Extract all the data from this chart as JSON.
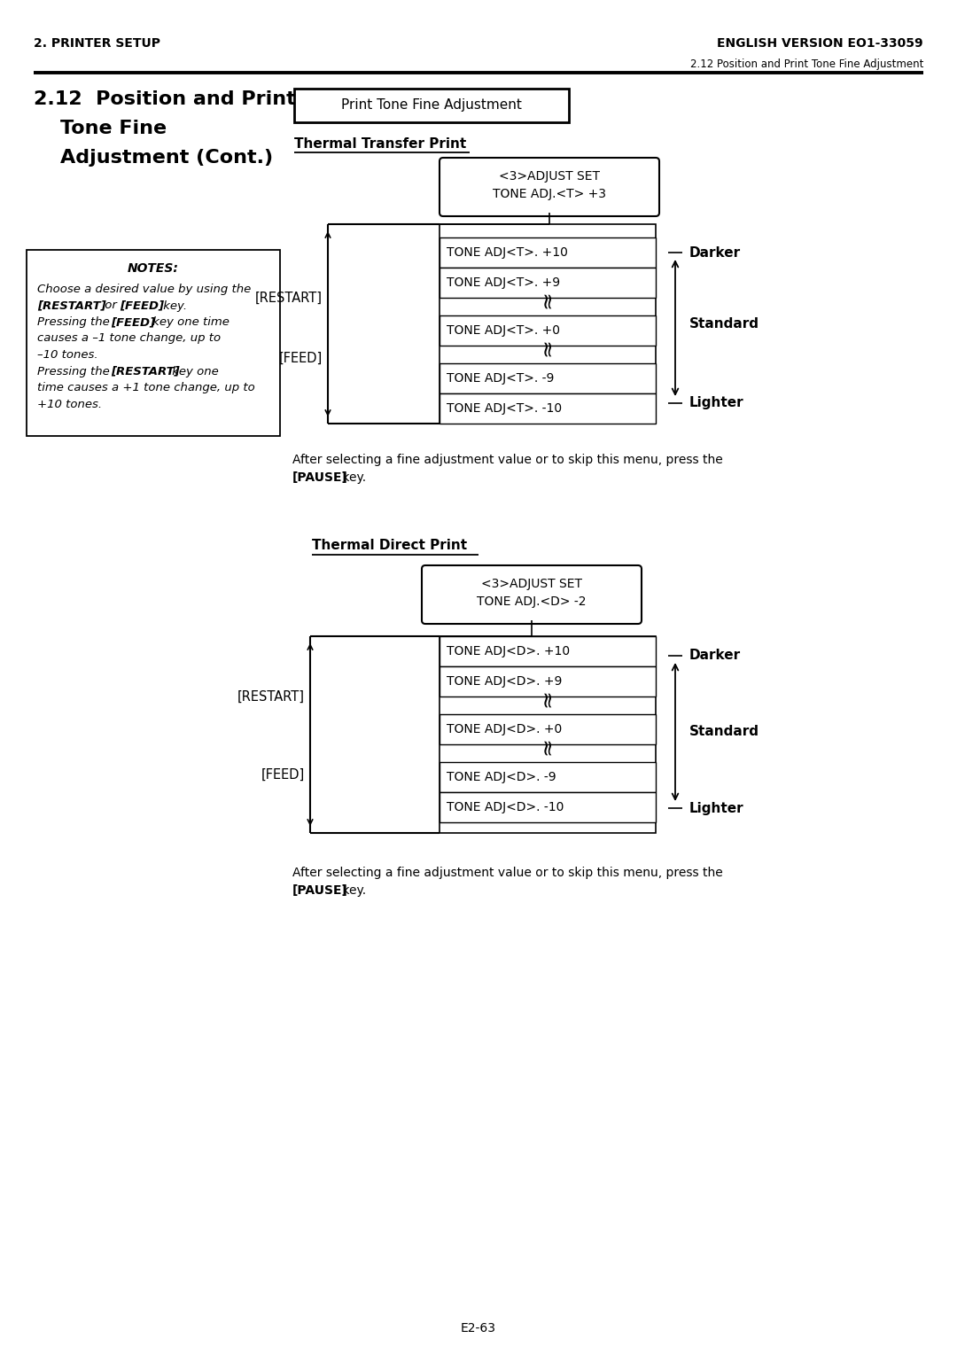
{
  "page_header_left": "2. PRINTER SETUP",
  "page_header_right": "ENGLISH VERSION EO1-33059",
  "page_subheader_right": "2.12 Position and Print Tone Fine Adjustment",
  "section_title_line1": "2.12  Position and Print",
  "section_title_line2": "Tone Fine",
  "section_title_line3": "Adjustment (Cont.)",
  "box_title": "Print Tone Fine Adjustment",
  "notes_title": "NOTES:",
  "thermal_transfer_title": "Thermal Transfer Print",
  "tt_top_box_line1": "<3>ADJUST SET",
  "tt_top_box_line2": "TONE ADJ.<T> +3",
  "tt_boxes": [
    "TONE ADJ<T>. +10",
    "TONE ADJ<T>. +9",
    "TONE ADJ<T>. +0",
    "TONE ADJ<T>. -9",
    "TONE ADJ<T>. -10"
  ],
  "tt_restart_label": "[RESTART]",
  "tt_feed_label": "[FEED]",
  "tt_darker_label": "Darker",
  "tt_standard_label": "Standard",
  "tt_lighter_label": "Lighter",
  "pause_text_line1": "After selecting a fine adjustment value or to skip this menu, press the",
  "pause_text_line2_normal": " key.",
  "pause_text_bold": "[PAUSE]",
  "thermal_direct_title": "Thermal Direct Print",
  "td_top_box_line1": "<3>ADJUST SET",
  "td_top_box_line2": "TONE ADJ.<D> -2",
  "td_boxes": [
    "TONE ADJ<D>. +10",
    "TONE ADJ<D>. +9",
    "TONE ADJ<D>. +0",
    "TONE ADJ<D>. -9",
    "TONE ADJ<D>. -10"
  ],
  "td_restart_label": "[RESTART]",
  "td_feed_label": "[FEED]",
  "td_darker_label": "Darker",
  "td_standard_label": "Standard",
  "td_lighter_label": "Lighter",
  "pause2_text_line1": "After selecting a fine adjustment value or to skip this menu, press the",
  "pause2_text_bold": "[PAUSE]",
  "pause2_text_line2_normal": " key.",
  "page_number": "E2-63",
  "background_color": "#ffffff"
}
